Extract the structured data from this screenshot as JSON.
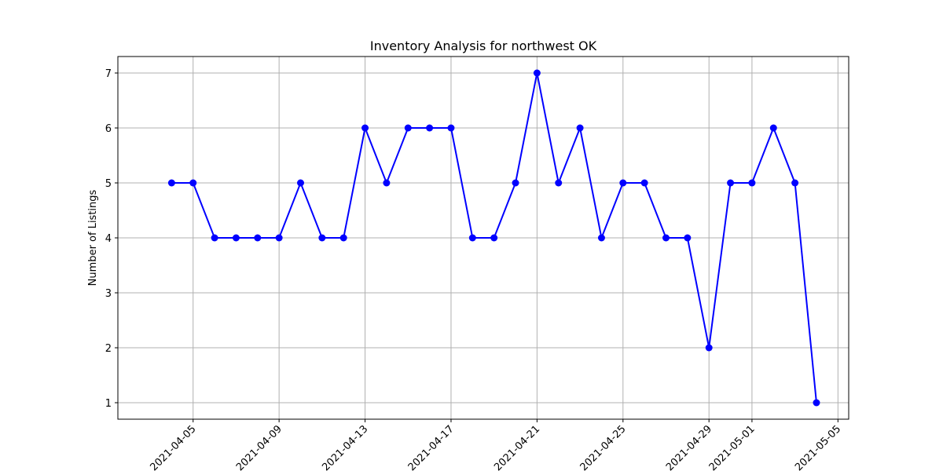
{
  "chart_data": {
    "type": "line",
    "title": "Inventory Analysis for northwest OK",
    "xlabel": "",
    "ylabel": "Number of Listings",
    "x": [
      "2021-04-04",
      "2021-04-05",
      "2021-04-06",
      "2021-04-07",
      "2021-04-08",
      "2021-04-09",
      "2021-04-10",
      "2021-04-11",
      "2021-04-12",
      "2021-04-13",
      "2021-04-14",
      "2021-04-15",
      "2021-04-16",
      "2021-04-17",
      "2021-04-18",
      "2021-04-19",
      "2021-04-20",
      "2021-04-21",
      "2021-04-22",
      "2021-04-23",
      "2021-04-24",
      "2021-04-25",
      "2021-04-26",
      "2021-04-27",
      "2021-04-28",
      "2021-04-29",
      "2021-04-30",
      "2021-05-01",
      "2021-05-02",
      "2021-05-03",
      "2021-05-04"
    ],
    "series": [
      {
        "values": [
          5,
          5,
          4,
          4,
          4,
          4,
          5,
          4,
          4,
          6,
          5,
          6,
          6,
          6,
          4,
          4,
          5,
          7,
          5,
          6,
          4,
          5,
          5,
          4,
          4,
          2,
          5,
          5,
          6,
          5,
          1
        ],
        "color": "#0000ff",
        "marker": "circle"
      }
    ],
    "xlim": [
      "2021-04-02",
      "2021-05-05"
    ],
    "ylim": [
      0.7,
      7.3
    ],
    "xticks": [
      "2021-04-05",
      "2021-04-09",
      "2021-04-13",
      "2021-04-17",
      "2021-04-21",
      "2021-04-25",
      "2021-04-29",
      "2021-05-01",
      "2021-05-05"
    ],
    "yticks": [
      1,
      2,
      3,
      4,
      5,
      6,
      7
    ],
    "grid": true
  }
}
